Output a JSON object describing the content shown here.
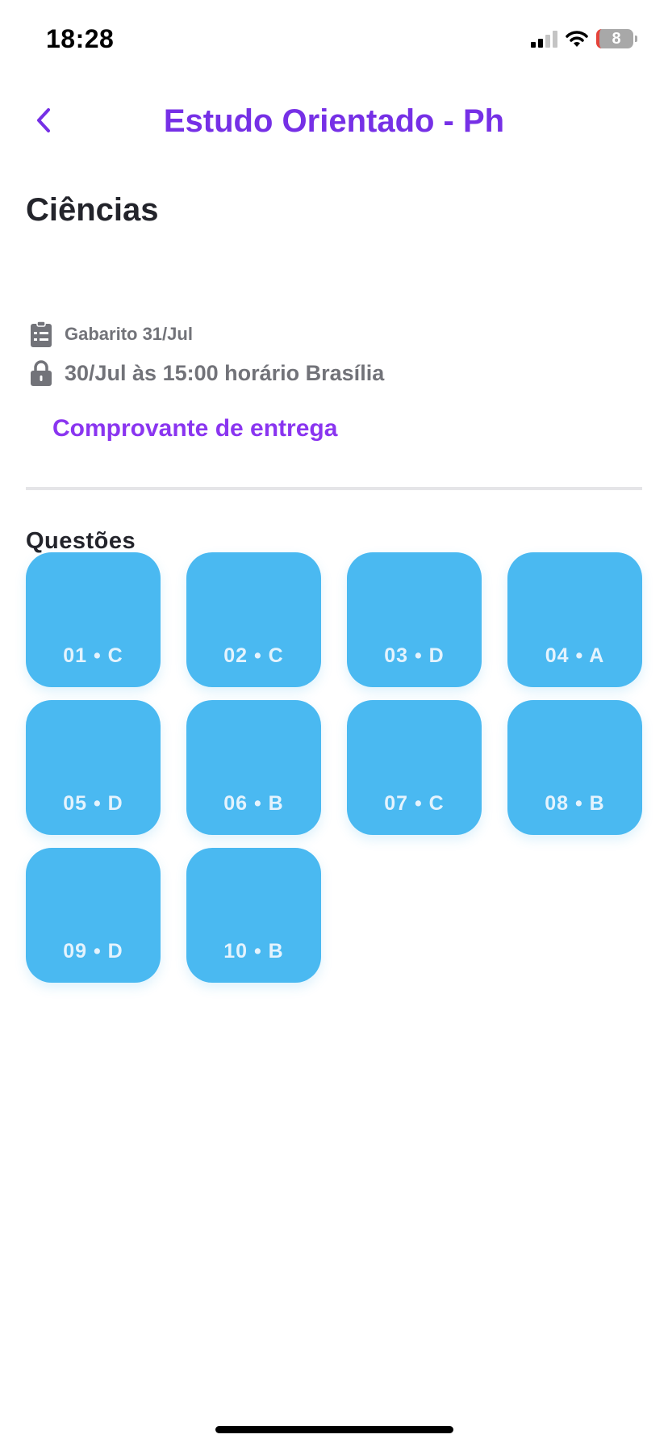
{
  "status_bar": {
    "time": "18:28",
    "battery": "8"
  },
  "nav": {
    "title": "Estudo Orientado - Ph",
    "back_icon": "chevron-left-icon"
  },
  "subject": "Ciências",
  "info": {
    "answer_key": "Gabarito 31/Jul",
    "deadline": "30/Jul às 15:00 horário Brasília"
  },
  "receipt_link": "Comprovante de entrega",
  "questions": {
    "title": "Questões",
    "items": [
      "01 • C",
      "02 • C",
      "03 • D",
      "04 • A",
      "05 • D",
      "06 • B",
      "07 • C",
      "08 • B",
      "09 • D",
      "10 • B"
    ]
  },
  "colors": {
    "accent": "#7630e6",
    "tile": "#4ab9f1",
    "text": "#23242b",
    "muted": "#727379"
  }
}
